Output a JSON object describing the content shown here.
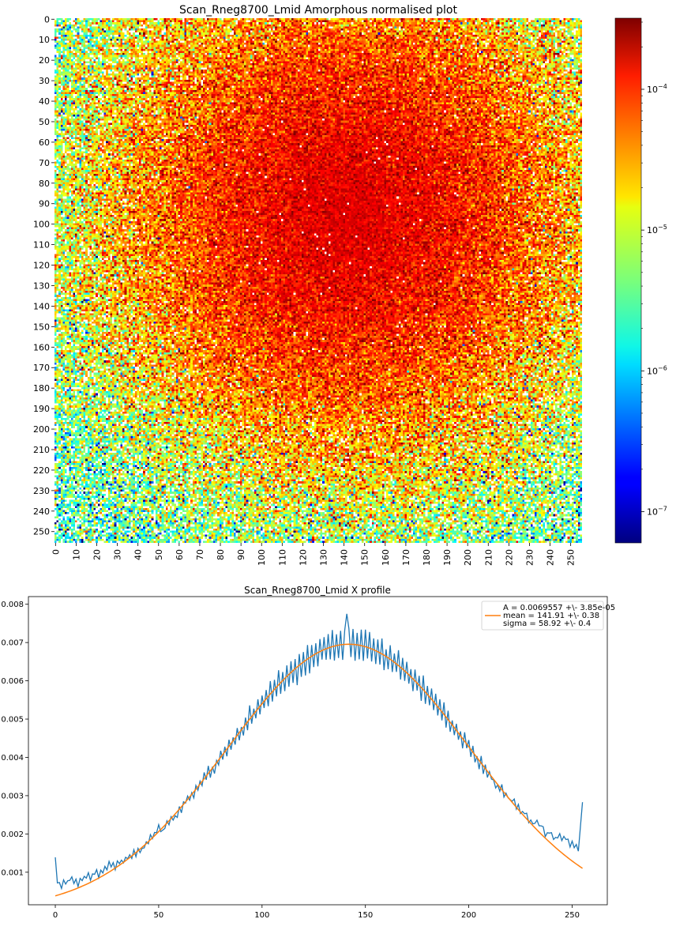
{
  "chart_data": [
    {
      "type": "heatmap",
      "title": "Scan_Rneg8700_Lmid Amorphous normalised plot",
      "xlabel": "",
      "ylabel": "",
      "shape": [
        256,
        256
      ],
      "xticks": [
        "0",
        "10",
        "20",
        "30",
        "40",
        "50",
        "60",
        "70",
        "80",
        "90",
        "100",
        "110",
        "120",
        "130",
        "140",
        "150",
        "160",
        "170",
        "180",
        "190",
        "200",
        "210",
        "220",
        "230",
        "240",
        "250"
      ],
      "yticks": [
        "0",
        "10",
        "20",
        "30",
        "40",
        "50",
        "60",
        "70",
        "80",
        "90",
        "100",
        "110",
        "120",
        "130",
        "140",
        "150",
        "160",
        "170",
        "180",
        "190",
        "200",
        "210",
        "220",
        "230",
        "240",
        "250"
      ],
      "colormap": "jet",
      "color_scale": "log",
      "colorbar_range": [
        6e-08,
        0.00032
      ],
      "colorbar_ticks": [
        {
          "value": 0.0001,
          "base": "10",
          "exp": "−4"
        },
        {
          "value": 1e-05,
          "base": "10",
          "exp": "−5"
        },
        {
          "value": 1e-06,
          "base": "10",
          "exp": "−6"
        },
        {
          "value": 1e-07,
          "base": "10",
          "exp": "−7"
        }
      ],
      "intensity_model": {
        "peak_value": 0.00014,
        "center_x": 142,
        "center_y": 95,
        "sigma_x": 59,
        "sigma_y": 62,
        "background": 2.5e-07
      },
      "missing_pixels": "white (sparse, mostly at edges)"
    },
    {
      "type": "line",
      "title": "Scan_Rneg8700_Lmid X profile",
      "xlabel": "",
      "ylabel": "",
      "xlim": [
        -13,
        267
      ],
      "ylim": [
        0.00015,
        0.0082
      ],
      "xticks": [
        0,
        50,
        100,
        150,
        200,
        250
      ],
      "yticks": [
        0.001,
        0.002,
        0.003,
        0.004,
        0.005,
        0.006,
        0.007,
        0.008
      ],
      "ytick_labels": [
        "0.001",
        "0.002",
        "0.003",
        "0.004",
        "0.005",
        "0.006",
        "0.007",
        "0.008"
      ],
      "series": [
        {
          "color": "#1f77b4",
          "x_range": [
            0,
            255
          ],
          "values_sample": [
            {
              "x": 0,
              "y": 0.00139
            },
            {
              "x": 1,
              "y": 0.00072
            },
            {
              "x": 5,
              "y": 0.00078
            },
            {
              "x": 10,
              "y": 0.00079
            },
            {
              "x": 20,
              "y": 0.00095
            },
            {
              "x": 30,
              "y": 0.00122
            },
            {
              "x": 40,
              "y": 0.00148
            },
            {
              "x": 50,
              "y": 0.0019
            },
            {
              "x": 60,
              "y": 0.00245
            },
            {
              "x": 70,
              "y": 0.0031
            },
            {
              "x": 80,
              "y": 0.00385
            },
            {
              "x": 90,
              "y": 0.00455
            },
            {
              "x": 100,
              "y": 0.0054
            },
            {
              "x": 110,
              "y": 0.0061
            },
            {
              "x": 120,
              "y": 0.00665
            },
            {
              "x": 130,
              "y": 0.00695
            },
            {
              "x": 141,
              "y": 0.00775
            },
            {
              "x": 150,
              "y": 0.007
            },
            {
              "x": 160,
              "y": 0.0066
            },
            {
              "x": 170,
              "y": 0.0061
            },
            {
              "x": 180,
              "y": 0.0054
            },
            {
              "x": 190,
              "y": 0.00465
            },
            {
              "x": 200,
              "y": 0.00395
            },
            {
              "x": 210,
              "y": 0.0033
            },
            {
              "x": 220,
              "y": 0.0028
            },
            {
              "x": 230,
              "y": 0.00235
            },
            {
              "x": 240,
              "y": 0.00195
            },
            {
              "x": 250,
              "y": 0.0018
            },
            {
              "x": 253,
              "y": 0.00155
            },
            {
              "x": 255,
              "y": 0.00283
            }
          ]
        },
        {
          "color": "#ff7f0e",
          "fit": {
            "A": 0.0069557,
            "mean": 141.91,
            "sigma": 58.92
          },
          "x_range": [
            0,
            255
          ]
        }
      ],
      "legend": {
        "placement": "upper right",
        "entries": [
          {
            "text": "A = 0.0069557 +\\- 3.85e-05",
            "color": ""
          },
          {
            "text": "mean = 141.91 +\\- 0.38",
            "color": "#ff7f0e"
          },
          {
            "text": "sigma = 58.92 +\\- 0.4",
            "color": ""
          }
        ]
      }
    }
  ]
}
